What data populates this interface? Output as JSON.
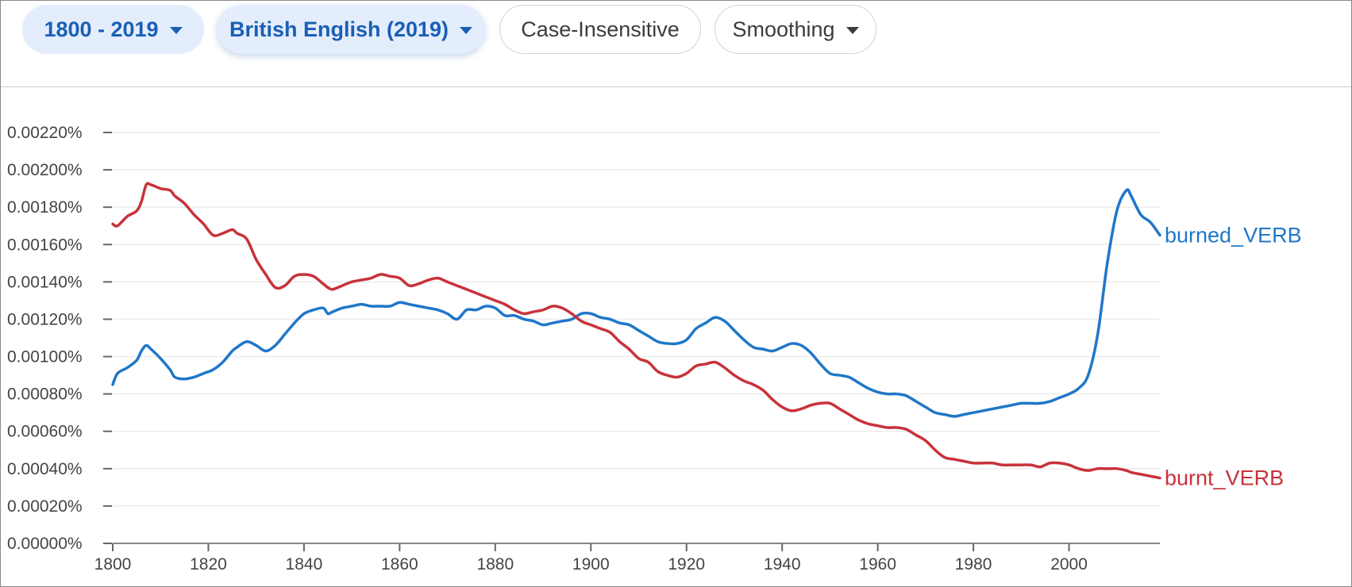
{
  "toolbar": {
    "year_range": "1800 - 2019",
    "corpus": "British English (2019)",
    "case_option": "Case-Insensitive",
    "smoothing": "Smoothing"
  },
  "colors": {
    "accent": "#1a5fb4",
    "chip_fill": "#e3edfc",
    "burned": "#1f77c8",
    "burnt": "#c8323a"
  },
  "chart_data": {
    "type": "line",
    "title": "",
    "xlabel": "",
    "ylabel": "",
    "xlim": [
      1800,
      2019
    ],
    "ylim": [
      0,
      0.0022
    ],
    "y_ticks": [
      "0.00000%",
      "0.00020%",
      "0.00040%",
      "0.00060%",
      "0.00080%",
      "0.00100%",
      "0.00120%",
      "0.00140%",
      "0.00160%",
      "0.00180%",
      "0.00200%",
      "0.00220%"
    ],
    "x_ticks": [
      "1800",
      "1820",
      "1840",
      "1860",
      "1880",
      "1900",
      "1920",
      "1940",
      "1960",
      "1980",
      "2000"
    ],
    "grid": "horizontal",
    "legend": "inline-right",
    "series": [
      {
        "name": "burned_VERB",
        "color": "#1f77c8",
        "x": [
          1800,
          1801,
          1803,
          1805,
          1806,
          1807,
          1808,
          1810,
          1812,
          1813,
          1815,
          1817,
          1819,
          1821,
          1823,
          1825,
          1826,
          1828,
          1830,
          1832,
          1834,
          1836,
          1838,
          1840,
          1842,
          1844,
          1845,
          1846,
          1848,
          1850,
          1852,
          1854,
          1856,
          1858,
          1860,
          1862,
          1864,
          1866,
          1868,
          1870,
          1872,
          1874,
          1876,
          1878,
          1880,
          1882,
          1884,
          1886,
          1888,
          1890,
          1892,
          1894,
          1896,
          1898,
          1900,
          1902,
          1904,
          1906,
          1908,
          1910,
          1912,
          1914,
          1916,
          1918,
          1920,
          1922,
          1924,
          1926,
          1928,
          1930,
          1932,
          1934,
          1936,
          1938,
          1940,
          1942,
          1944,
          1946,
          1948,
          1950,
          1952,
          1954,
          1956,
          1958,
          1960,
          1962,
          1964,
          1966,
          1968,
          1970,
          1972,
          1974,
          1976,
          1978,
          1980,
          1982,
          1984,
          1986,
          1988,
          1990,
          1992,
          1994,
          1996,
          1998,
          2000,
          2002,
          2004,
          2006,
          2008,
          2010,
          2012,
          2013,
          2015,
          2017,
          2019
        ],
        "values": [
          0.00085,
          0.00091,
          0.00094,
          0.00098,
          0.00103,
          0.00106,
          0.00104,
          0.00099,
          0.00093,
          0.00089,
          0.00088,
          0.00089,
          0.00091,
          0.00093,
          0.00097,
          0.00103,
          0.00105,
          0.00108,
          0.00106,
          0.00103,
          0.00106,
          0.00112,
          0.00118,
          0.00123,
          0.00125,
          0.00126,
          0.00123,
          0.00124,
          0.00126,
          0.00127,
          0.00128,
          0.00127,
          0.00127,
          0.00127,
          0.00129,
          0.00128,
          0.00127,
          0.00126,
          0.00125,
          0.00123,
          0.0012,
          0.00125,
          0.00125,
          0.00127,
          0.00126,
          0.00122,
          0.00122,
          0.0012,
          0.00119,
          0.00117,
          0.00118,
          0.00119,
          0.0012,
          0.00123,
          0.00123,
          0.00121,
          0.0012,
          0.00118,
          0.00117,
          0.00114,
          0.00111,
          0.00108,
          0.00107,
          0.00107,
          0.00109,
          0.00115,
          0.00118,
          0.00121,
          0.00119,
          0.00114,
          0.00109,
          0.00105,
          0.00104,
          0.00103,
          0.00105,
          0.00107,
          0.00106,
          0.00102,
          0.00096,
          0.00091,
          0.0009,
          0.00089,
          0.00086,
          0.00083,
          0.00081,
          0.0008,
          0.0008,
          0.00079,
          0.00076,
          0.00073,
          0.0007,
          0.00069,
          0.00068,
          0.00069,
          0.0007,
          0.00071,
          0.00072,
          0.00073,
          0.00074,
          0.00075,
          0.00075,
          0.00075,
          0.00076,
          0.00078,
          0.0008,
          0.00083,
          0.0009,
          0.00112,
          0.0015,
          0.00178,
          0.00189,
          0.00186,
          0.00176,
          0.00172,
          0.00165
        ]
      },
      {
        "name": "burnt_VERB",
        "color": "#c8323a",
        "x": [
          1800,
          1801,
          1803,
          1805,
          1806,
          1807,
          1808,
          1810,
          1812,
          1813,
          1815,
          1817,
          1819,
          1821,
          1823,
          1825,
          1826,
          1828,
          1830,
          1832,
          1834,
          1836,
          1838,
          1840,
          1842,
          1844,
          1845,
          1846,
          1848,
          1850,
          1852,
          1854,
          1856,
          1858,
          1860,
          1862,
          1864,
          1866,
          1868,
          1870,
          1872,
          1874,
          1876,
          1878,
          1880,
          1882,
          1884,
          1886,
          1888,
          1890,
          1892,
          1894,
          1896,
          1898,
          1900,
          1902,
          1904,
          1906,
          1908,
          1910,
          1912,
          1914,
          1916,
          1918,
          1920,
          1922,
          1924,
          1926,
          1928,
          1930,
          1932,
          1934,
          1936,
          1938,
          1940,
          1942,
          1944,
          1946,
          1948,
          1950,
          1952,
          1954,
          1956,
          1958,
          1960,
          1962,
          1964,
          1966,
          1968,
          1970,
          1972,
          1974,
          1976,
          1978,
          1980,
          1982,
          1984,
          1986,
          1988,
          1990,
          1992,
          1994,
          1996,
          1998,
          2000,
          2002,
          2004,
          2006,
          2008,
          2010,
          2012,
          2013,
          2015,
          2017,
          2019
        ],
        "values": [
          0.00171,
          0.0017,
          0.00175,
          0.00178,
          0.00183,
          0.00192,
          0.00192,
          0.0019,
          0.00189,
          0.00186,
          0.00182,
          0.00176,
          0.00171,
          0.00165,
          0.00166,
          0.00168,
          0.00166,
          0.00163,
          0.00152,
          0.00144,
          0.00137,
          0.00138,
          0.00143,
          0.00144,
          0.00143,
          0.00139,
          0.00137,
          0.00136,
          0.00138,
          0.0014,
          0.00141,
          0.00142,
          0.00144,
          0.00143,
          0.00142,
          0.00138,
          0.00139,
          0.00141,
          0.00142,
          0.0014,
          0.00138,
          0.00136,
          0.00134,
          0.00132,
          0.0013,
          0.00128,
          0.00125,
          0.00123,
          0.00124,
          0.00125,
          0.00127,
          0.00126,
          0.00123,
          0.00119,
          0.00117,
          0.00115,
          0.00113,
          0.00108,
          0.00104,
          0.00099,
          0.00097,
          0.00092,
          0.0009,
          0.00089,
          0.00091,
          0.00095,
          0.00096,
          0.00097,
          0.00094,
          0.0009,
          0.00087,
          0.00085,
          0.00082,
          0.00077,
          0.00073,
          0.00071,
          0.00072,
          0.00074,
          0.00075,
          0.00075,
          0.00072,
          0.00069,
          0.00066,
          0.00064,
          0.00063,
          0.00062,
          0.00062,
          0.00061,
          0.00058,
          0.00055,
          0.0005,
          0.00046,
          0.00045,
          0.00044,
          0.00043,
          0.00043,
          0.00043,
          0.00042,
          0.00042,
          0.00042,
          0.00042,
          0.00041,
          0.00043,
          0.00043,
          0.00042,
          0.0004,
          0.00039,
          0.0004,
          0.0004,
          0.0004,
          0.00039,
          0.00038,
          0.00037,
          0.00036,
          0.00035
        ]
      }
    ]
  }
}
